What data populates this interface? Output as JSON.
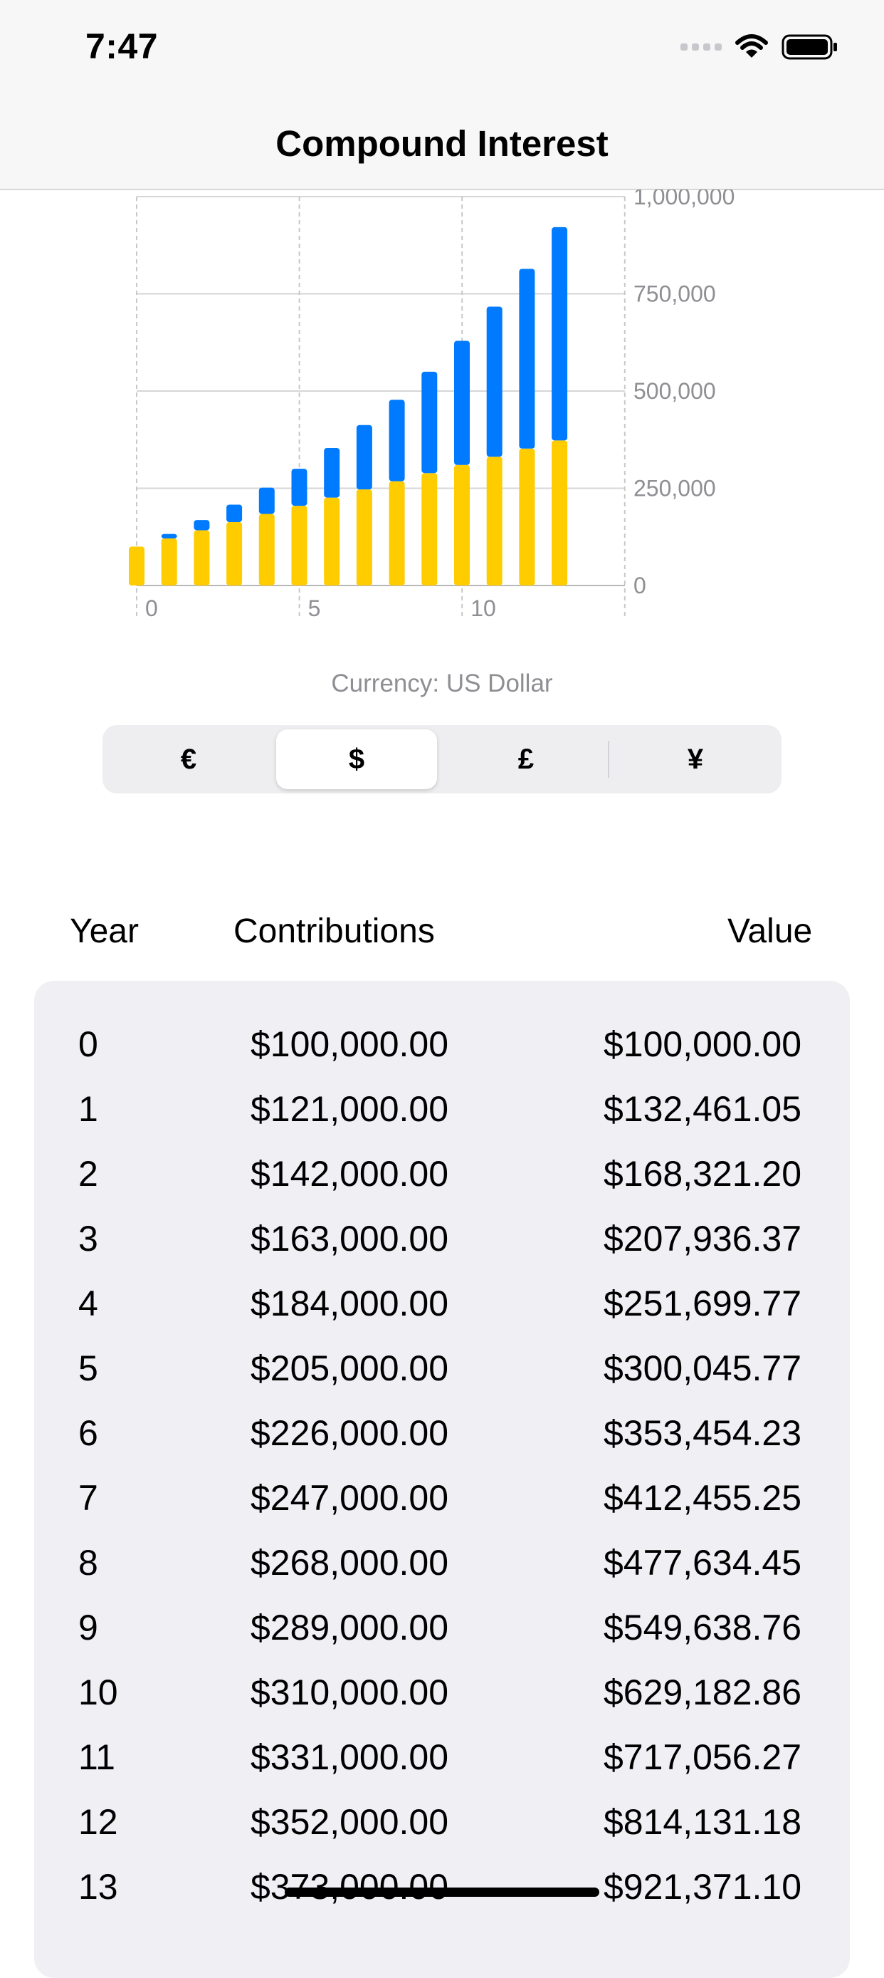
{
  "status_bar": {
    "time": "7:47"
  },
  "nav": {
    "title": "Compound Interest"
  },
  "chart_data": {
    "type": "bar",
    "stacked": true,
    "categories": [
      0,
      1,
      2,
      3,
      4,
      5,
      6,
      7,
      8,
      9,
      10,
      11,
      12,
      13
    ],
    "series": [
      {
        "color": "#ffcc00",
        "values": [
          100000,
          121000,
          142000,
          163000,
          184000,
          205000,
          226000,
          247000,
          268000,
          289000,
          310000,
          331000,
          352000,
          373000
        ]
      },
      {
        "color": "#007aff",
        "values": [
          0,
          11461.05,
          26321.2,
          44936.37,
          67699.77,
          95045.77,
          127454.23,
          165455.25,
          209634.45,
          260638.76,
          319182.86,
          386056.27,
          462131.18,
          548371.1
        ]
      }
    ],
    "ylim": [
      0,
      1000000
    ],
    "y_ticks": [
      "1,000,000",
      "750,000",
      "500,000",
      "250,000",
      "0"
    ],
    "x_ticks": [
      "0",
      "5",
      "10"
    ],
    "axis_side": "right",
    "grid": true
  },
  "currency": {
    "label": "Currency: US Dollar",
    "options": [
      "€",
      "$",
      "£",
      "¥"
    ],
    "selected": "$"
  },
  "table": {
    "headers": {
      "year": "Year",
      "contributions": "Contributions",
      "value": "Value"
    },
    "rows": [
      {
        "year": "0",
        "contributions": "$100,000.00",
        "value": "$100,000.00"
      },
      {
        "year": "1",
        "contributions": "$121,000.00",
        "value": "$132,461.05"
      },
      {
        "year": "2",
        "contributions": "$142,000.00",
        "value": "$168,321.20"
      },
      {
        "year": "3",
        "contributions": "$163,000.00",
        "value": "$207,936.37"
      },
      {
        "year": "4",
        "contributions": "$184,000.00",
        "value": "$251,699.77"
      },
      {
        "year": "5",
        "contributions": "$205,000.00",
        "value": "$300,045.77"
      },
      {
        "year": "6",
        "contributions": "$226,000.00",
        "value": "$353,454.23"
      },
      {
        "year": "7",
        "contributions": "$247,000.00",
        "value": "$412,455.25"
      },
      {
        "year": "8",
        "contributions": "$268,000.00",
        "value": "$477,634.45"
      },
      {
        "year": "9",
        "contributions": "$289,000.00",
        "value": "$549,638.76"
      },
      {
        "year": "10",
        "contributions": "$310,000.00",
        "value": "$629,182.86"
      },
      {
        "year": "11",
        "contributions": "$331,000.00",
        "value": "$717,056.27"
      },
      {
        "year": "12",
        "contributions": "$352,000.00",
        "value": "$814,131.18"
      },
      {
        "year": "13",
        "contributions": "$373,000.00",
        "value": "$921,371.10"
      }
    ]
  }
}
